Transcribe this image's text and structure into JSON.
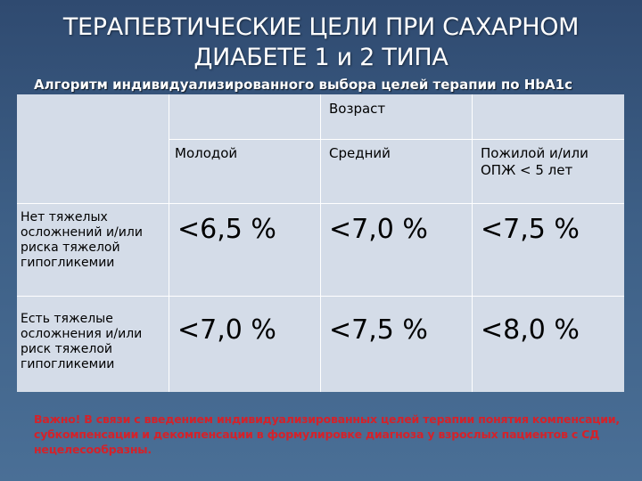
{
  "title": {
    "line1": "ТЕРАПЕВТИЧЕСКИЕ ЦЕЛИ ПРИ САХАРНОМ",
    "line2": "ДИАБЕТЕ 1 и 2 ТИПА"
  },
  "subtitle": "Алгоритм индивидуализированного выбора целей терапии по HbA1c",
  "table": {
    "group_header": "Возраст",
    "columns": [
      "Молодой",
      "Средний",
      "Пожилой и/или ОПЖ < 5 лет"
    ],
    "rows": [
      {
        "label": "Нет тяжелых осложнений и/или риска тяжелой гипогликемии",
        "values": [
          "<6,5 %",
          "<7,0 %",
          "<7,5 %"
        ]
      },
      {
        "label": "Есть тяжелые осложнения и/или риск тяжелой гипогликемии",
        "values": [
          "<7,0 %",
          "<7,5 %",
          "<8,0 %"
        ]
      }
    ]
  },
  "note": "Важно! В связи с введением индивидуализированных целей терапии понятия компенсации, субкомпенсации и декомпенсации в формулировке диагноза у взрослых пациентов с СД нецелесообразны."
}
